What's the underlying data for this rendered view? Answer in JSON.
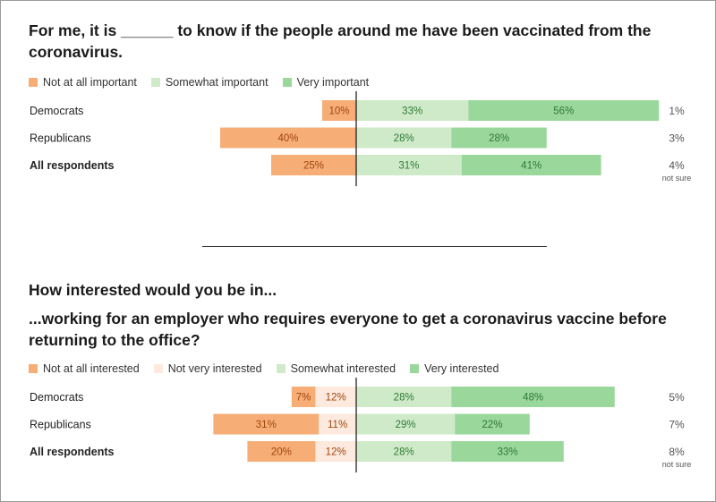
{
  "colors": {
    "not_at_all": "#f6ad76",
    "not_very": "#fde9de",
    "somewhat": "#cfeac8",
    "very": "#9ad79b",
    "dark_red_text": "#a0470e",
    "dark_green_text": "#2f7a37",
    "axis": "#222222"
  },
  "section1": {
    "title_line1": "For me, it is ______ to know if the people around me have been vaccinated from the",
    "title_line2": "coronavirus.",
    "legend": [
      "Not at all important",
      "Somewhat important",
      "Very important"
    ]
  },
  "section2": {
    "heading": "How interested would you be in...",
    "title_line1": "...working for an employer who requires everyone to get a coronavirus vaccine before",
    "title_line2": "returning to the office?",
    "legend": [
      "Not at all interested",
      "Not very interested",
      "Somewhat interested",
      "Very interested"
    ]
  },
  "chart_data": [
    {
      "type": "bar",
      "subtype": "diverging-stacked",
      "title": "For me, it is ______ to know if the people around me have been vaccinated from the coronavirus.",
      "categories": [
        "Democrats",
        "Republicans",
        "All respondents"
      ],
      "bold_categories": [
        "All respondents"
      ],
      "negative_series": [
        {
          "name": "Not at all important",
          "values": [
            10,
            40,
            25
          ],
          "labels": [
            "10%",
            "40%",
            "25%"
          ],
          "color_key": "not_at_all",
          "text_key": "dark_red_text"
        }
      ],
      "positive_series": [
        {
          "name": "Somewhat important",
          "values": [
            33,
            28,
            31
          ],
          "labels": [
            "33%",
            "28%",
            "31%"
          ],
          "color_key": "somewhat",
          "text_key": "dark_green_text"
        },
        {
          "name": "Very important",
          "values": [
            56,
            28,
            41
          ],
          "labels": [
            "56%",
            "28%",
            "41%"
          ],
          "color_key": "very",
          "text_key": "dark_green_text"
        }
      ],
      "not_sure": [
        "1%",
        "3%",
        "4%"
      ],
      "not_sure_caption": "not sure"
    },
    {
      "type": "bar",
      "subtype": "diverging-stacked",
      "title": "...working for an employer who requires everyone to get a coronavirus vaccine before returning to the office?",
      "categories": [
        "Democrats",
        "Republicans",
        "All respondents"
      ],
      "bold_categories": [
        "All respondents"
      ],
      "negative_series": [
        {
          "name": "Not very interested",
          "values": [
            12,
            11,
            12
          ],
          "labels": [
            "12%",
            "11%",
            "12%"
          ],
          "color_key": "not_very",
          "text_key": "dark_red_text"
        },
        {
          "name": "Not at all interested",
          "values": [
            7,
            31,
            20
          ],
          "labels": [
            "7%",
            "31%",
            "20%"
          ],
          "color_key": "not_at_all",
          "text_key": "dark_red_text"
        }
      ],
      "positive_series": [
        {
          "name": "Somewhat interested",
          "values": [
            28,
            29,
            28
          ],
          "labels": [
            "28%",
            "29%",
            "28%"
          ],
          "color_key": "somewhat",
          "text_key": "dark_green_text"
        },
        {
          "name": "Very interested",
          "values": [
            48,
            22,
            33
          ],
          "labels": [
            "48%",
            "22%",
            "33%"
          ],
          "color_key": "very",
          "text_key": "dark_green_text"
        }
      ],
      "not_sure": [
        "5%",
        "7%",
        "8%"
      ],
      "not_sure_caption": "not sure"
    }
  ]
}
